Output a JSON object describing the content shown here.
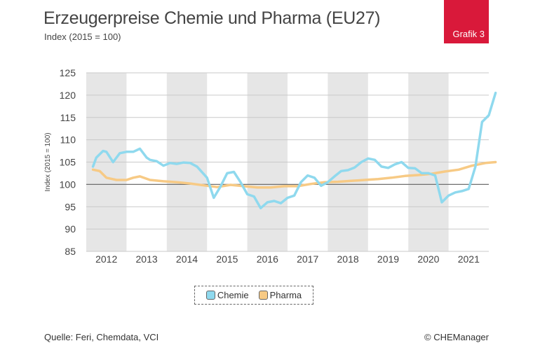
{
  "header": {
    "title": "Erzeugerpreise Chemie und Pharma (EU27)",
    "subtitle": "Index (2015 = 100)",
    "badge": "Grafik 3"
  },
  "footer": {
    "source": "Quelle: Feri, Chemdata, VCI",
    "copyright": "© CHEManager"
  },
  "colors": {
    "chemie": "#8fd9ee",
    "pharma": "#f7ca85",
    "shade": "#e6e6e6",
    "badge": "#d9193a"
  },
  "chart_data": {
    "type": "line",
    "title": "Erzeugerpreise Chemie und Pharma (EU27)",
    "subtitle": "Index (2015 = 100)",
    "ylabel": "Index (2015 = 100)",
    "xlabel": "",
    "ylim": [
      85,
      125
    ],
    "yticks": [
      85,
      90,
      95,
      100,
      105,
      110,
      115,
      120,
      125
    ],
    "xlim": [
      2011.5,
      2021.5
    ],
    "xticks": [
      "2012",
      "2013",
      "2014",
      "2015",
      "2016",
      "2017",
      "2018",
      "2019",
      "2020",
      "2021"
    ],
    "reference_line": 100,
    "shaded_years": [
      "2012",
      "2014",
      "2016",
      "2018",
      "2020"
    ],
    "legend": {
      "position": "bottom",
      "items": [
        "Chemie",
        "Pharma"
      ]
    },
    "series": [
      {
        "name": "Chemie",
        "x": [
          "2011-09",
          "2011-10",
          "2011-12",
          "2012-01",
          "2012-03",
          "2012-05",
          "2012-07",
          "2012-09",
          "2012-11",
          "2013-01",
          "2013-02",
          "2013-04",
          "2013-06",
          "2013-08",
          "2013-10",
          "2013-12",
          "2014-02",
          "2014-04",
          "2014-07",
          "2014-09",
          "2014-11",
          "2015-01",
          "2015-03",
          "2015-05",
          "2015-07",
          "2015-09",
          "2015-11",
          "2016-01",
          "2016-03",
          "2016-05",
          "2016-07",
          "2016-09",
          "2016-11",
          "2017-01",
          "2017-03",
          "2017-05",
          "2017-07",
          "2017-09",
          "2017-11",
          "2018-01",
          "2018-03",
          "2018-05",
          "2018-07",
          "2018-09",
          "2018-11",
          "2019-01",
          "2019-03",
          "2019-05",
          "2019-07",
          "2019-09",
          "2019-11",
          "2020-01",
          "2020-03",
          "2020-05",
          "2020-07",
          "2020-09",
          "2020-11",
          "2021-01",
          "2021-03",
          "2021-05",
          "2021-07",
          "2021-09"
        ],
        "y": [
          104,
          106,
          107.5,
          107.3,
          105,
          107,
          107.3,
          107.3,
          108,
          106,
          105.5,
          105.2,
          104.2,
          104.8,
          104.6,
          104.9,
          104.8,
          104,
          101.5,
          97,
          99.5,
          102.5,
          102.8,
          100.5,
          97.8,
          97.3,
          94.7,
          96,
          96.3,
          95.8,
          97,
          97.5,
          100.5,
          102,
          101.5,
          99.7,
          100.5,
          101.8,
          103,
          103.2,
          103.8,
          105,
          105.8,
          105.5,
          104,
          103.7,
          104.5,
          105,
          103.7,
          103.6,
          102.5,
          102.5,
          102,
          96,
          97.5,
          98.2,
          98.5,
          99,
          104,
          114,
          115.5,
          120.5
        ]
      },
      {
        "name": "Pharma",
        "x": [
          "2011-09",
          "2011-11",
          "2012-01",
          "2012-04",
          "2012-07",
          "2012-09",
          "2012-11",
          "2013-02",
          "2013-06",
          "2013-10",
          "2014-02",
          "2014-06",
          "2014-10",
          "2015-02",
          "2015-06",
          "2015-10",
          "2016-02",
          "2016-06",
          "2016-10",
          "2017-02",
          "2017-06",
          "2017-10",
          "2018-02",
          "2018-06",
          "2018-10",
          "2019-02",
          "2019-06",
          "2019-10",
          "2020-02",
          "2020-06",
          "2020-10",
          "2021-02",
          "2021-06",
          "2021-09"
        ],
        "y": [
          103.3,
          103,
          101.5,
          101,
          101,
          101.5,
          101.8,
          101,
          100.7,
          100.5,
          100.2,
          99.8,
          99.4,
          99.9,
          99.6,
          99.3,
          99.3,
          99.6,
          99.6,
          100.1,
          100.5,
          100.6,
          100.8,
          101,
          101.2,
          101.5,
          101.9,
          102.1,
          102.4,
          102.9,
          103.3,
          104.2,
          104.8,
          105
        ]
      }
    ]
  }
}
